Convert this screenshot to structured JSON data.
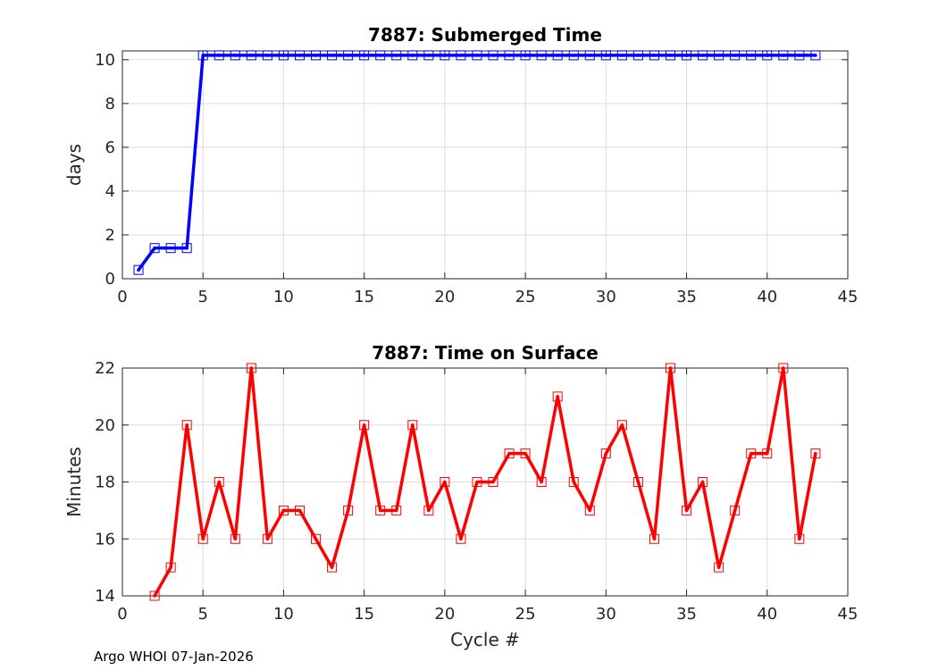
{
  "footer_text": "Argo WHOI 07-Jan-2026",
  "chart_data": [
    {
      "type": "line",
      "title": "7887: Submerged Time",
      "xlabel": "",
      "ylabel": "days",
      "xlim": [
        0,
        45
      ],
      "ylim": [
        0,
        10.4
      ],
      "xticks": [
        0,
        5,
        10,
        15,
        20,
        25,
        30,
        35,
        40,
        45
      ],
      "yticks": [
        0,
        2,
        4,
        6,
        8,
        10
      ],
      "grid": true,
      "color": "#0000ff",
      "marker": "square",
      "x": [
        1,
        2,
        3,
        4,
        5,
        6,
        7,
        8,
        9,
        10,
        11,
        12,
        13,
        14,
        15,
        16,
        17,
        18,
        19,
        20,
        21,
        22,
        23,
        24,
        25,
        26,
        27,
        28,
        29,
        30,
        31,
        32,
        33,
        34,
        35,
        36,
        37,
        38,
        39,
        40,
        41,
        42,
        43
      ],
      "y": [
        0.4,
        1.4,
        1.4,
        1.4,
        10.2,
        10.2,
        10.2,
        10.2,
        10.2,
        10.2,
        10.2,
        10.2,
        10.2,
        10.2,
        10.2,
        10.2,
        10.2,
        10.2,
        10.2,
        10.2,
        10.2,
        10.2,
        10.2,
        10.2,
        10.2,
        10.2,
        10.2,
        10.2,
        10.2,
        10.2,
        10.2,
        10.2,
        10.2,
        10.2,
        10.2,
        10.2,
        10.2,
        10.2,
        10.2,
        10.2,
        10.2,
        10.2,
        10.2
      ]
    },
    {
      "type": "line",
      "title": "7887: Time on Surface",
      "xlabel": "Cycle #",
      "ylabel": "Minutes",
      "xlim": [
        0,
        45
      ],
      "ylim": [
        14,
        22
      ],
      "xticks": [
        0,
        5,
        10,
        15,
        20,
        25,
        30,
        35,
        40,
        45
      ],
      "yticks": [
        14,
        16,
        18,
        20,
        22
      ],
      "grid": true,
      "color": "#ff0000",
      "marker": "square",
      "x": [
        2,
        3,
        4,
        5,
        6,
        7,
        8,
        9,
        10,
        11,
        12,
        13,
        14,
        15,
        16,
        17,
        18,
        19,
        20,
        21,
        22,
        23,
        24,
        25,
        26,
        27,
        28,
        29,
        30,
        31,
        32,
        33,
        34,
        35,
        36,
        37,
        38,
        39,
        40,
        41,
        42,
        43
      ],
      "y": [
        14,
        15,
        20,
        16,
        18,
        16,
        22,
        16,
        17,
        17,
        16,
        15,
        17,
        20,
        17,
        17,
        20,
        17,
        18,
        16,
        18,
        18,
        19,
        19,
        18,
        21,
        18,
        17,
        19,
        20,
        18,
        16,
        22,
        17,
        18,
        15,
        17,
        19,
        19,
        22,
        16,
        19
      ]
    }
  ]
}
